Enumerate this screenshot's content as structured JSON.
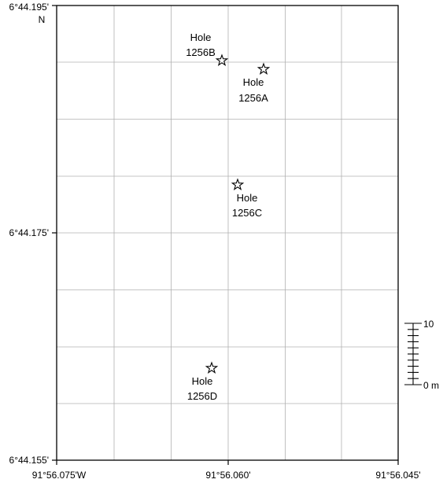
{
  "map": {
    "lat_labels": [
      "6°44.195'",
      "6°44.175'",
      "6°44.155'"
    ],
    "lat_hemisphere": "N",
    "lon_labels": [
      "91°56.075'W",
      "91°56.060'",
      "91°56.045'"
    ],
    "grid_color": "#b0b0b0",
    "frame_color": "#000000",
    "marker_icon": "star-icon"
  },
  "holes": [
    {
      "line1": "Hole",
      "line2": "1256B"
    },
    {
      "line1": "Hole",
      "line2": "1256A"
    },
    {
      "line1": "Hole",
      "line2": "1256C"
    },
    {
      "line1": "Hole",
      "line2": "1256D"
    }
  ],
  "scale_bar": {
    "top_label": "10",
    "bottom_label": "0 m"
  }
}
